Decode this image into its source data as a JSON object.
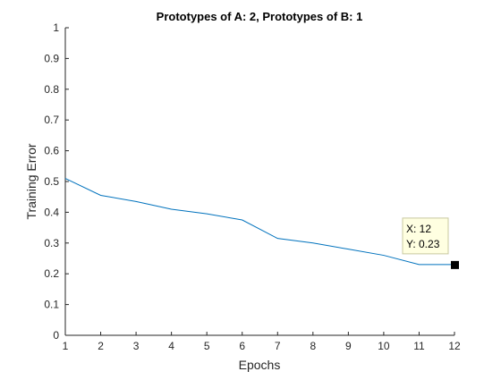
{
  "chart_data": {
    "type": "line",
    "title": "Prototypes of A: 2, Prototypes of B: 1",
    "xlabel": "Epochs",
    "ylabel": "Training Error",
    "xlim": [
      1,
      12
    ],
    "ylim": [
      0,
      1
    ],
    "x_ticks": [
      1,
      2,
      3,
      4,
      5,
      6,
      7,
      8,
      9,
      10,
      11,
      12
    ],
    "y_ticks": [
      0,
      0.1,
      0.2,
      0.3,
      0.4,
      0.5,
      0.6,
      0.7,
      0.8,
      0.9,
      1
    ],
    "grid": false,
    "series": [
      {
        "x": [
          1,
          2,
          3,
          4,
          5,
          6,
          7,
          8,
          9,
          10,
          11,
          12
        ],
        "values": [
          0.51,
          0.455,
          0.435,
          0.41,
          0.395,
          0.375,
          0.315,
          0.3,
          0.28,
          0.26,
          0.23,
          0.23
        ],
        "color": "#0072BD"
      }
    ],
    "datatip": {
      "x": 12,
      "y": 0.23,
      "x_text": "X: 12",
      "y_text": "Y: 0.23"
    }
  }
}
